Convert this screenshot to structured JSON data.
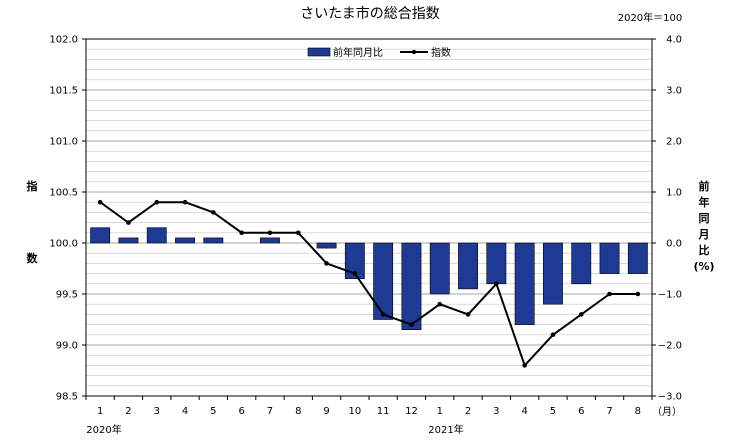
{
  "chart_data": {
    "type": "bar+line",
    "title": "さいたま市の総合指数",
    "base_note": "2020年＝100",
    "categories": [
      "1",
      "2",
      "3",
      "4",
      "5",
      "6",
      "7",
      "8",
      "9",
      "10",
      "11",
      "12",
      "1",
      "2",
      "3",
      "4",
      "5",
      "6",
      "7",
      "8"
    ],
    "x_unit": "（月）",
    "year_labels": [
      "2020年",
      "2021年"
    ],
    "left_axis": {
      "label_chars": [
        "指",
        "数"
      ],
      "min": 98.5,
      "max": 102.0,
      "step": 0.5,
      "ticks": [
        "98.5",
        "99.0",
        "99.5",
        "100.0",
        "100.5",
        "101.0",
        "101.5",
        "102.0"
      ]
    },
    "right_axis": {
      "label_chars": [
        "前",
        "年",
        "同",
        "月",
        "比",
        "(%)"
      ],
      "min": -3.0,
      "max": 4.0,
      "step": 1.0,
      "ticks": [
        "−3.0",
        "−2.0",
        "−1.0",
        "0.0",
        "1.0",
        "2.0",
        "3.0",
        "4.0"
      ]
    },
    "series": [
      {
        "name": "前年同月比",
        "type": "bar",
        "axis": "right",
        "color": "#1f3a93",
        "values": [
          0.3,
          0.1,
          0.3,
          0.1,
          0.1,
          0.0,
          0.1,
          0.0,
          -0.1,
          -0.7,
          -1.5,
          -1.7,
          -1.0,
          -0.9,
          -0.8,
          -1.6,
          -1.2,
          -0.8,
          -0.6,
          -0.6
        ]
      },
      {
        "name": "指数",
        "type": "line",
        "axis": "left",
        "color": "#000000",
        "values": [
          100.4,
          100.2,
          100.4,
          100.4,
          100.3,
          100.1,
          100.1,
          100.1,
          99.8,
          99.7,
          99.3,
          99.2,
          99.4,
          99.3,
          99.6,
          98.8,
          99.1,
          99.3,
          99.5,
          99.5
        ]
      }
    ],
    "grid": true,
    "legend_position": "top-center"
  }
}
